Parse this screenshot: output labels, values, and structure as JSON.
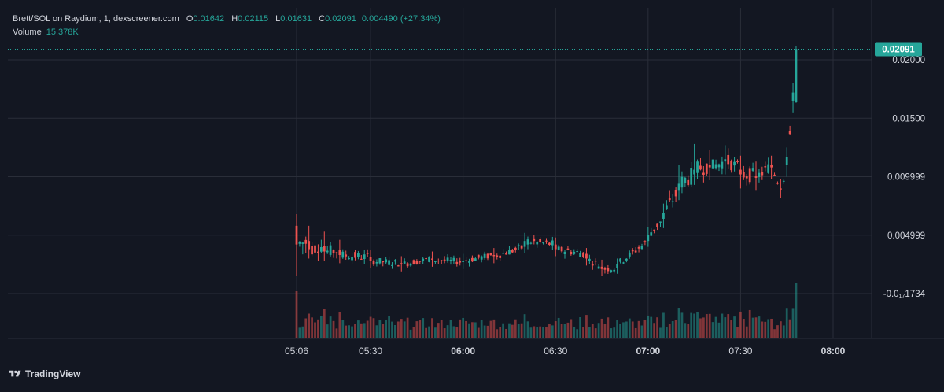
{
  "header": {
    "symbol": "Brett/SOL on Raydium, 1, dexscreener.com",
    "ohlc": [
      {
        "key": "O",
        "value": "0.01642"
      },
      {
        "key": "H",
        "value": "0.02115"
      },
      {
        "key": "L",
        "value": "0.01631"
      },
      {
        "key": "C",
        "value": "0.02091"
      }
    ],
    "change": "0.004490 (+27.34%)",
    "volume_label": "Volume",
    "volume_value": "15.378K"
  },
  "price_tag": "0.02091",
  "branding": "TradingView",
  "colors": {
    "background": "#131722",
    "up": "#26a69a",
    "down": "#ef5350",
    "grid": "#2a2e39",
    "text": "#d1d4dc",
    "tag": "#26a69a"
  },
  "chart_data": {
    "type": "candlestick",
    "y_tick_labels": [
      "0.02000",
      "0.01500",
      "0.009999",
      "0.004999",
      "-0.0₁₇1734"
    ],
    "y_ticks": [
      0.02,
      0.015,
      0.01,
      0.005,
      0.0
    ],
    "x_tick_labels": [
      "05:06",
      "05:30",
      "06:00",
      "06:30",
      "07:00",
      "07:30",
      "08:00"
    ],
    "x_tick_times": [
      "05:06",
      "05:30",
      "06:00",
      "06:30",
      "07:00",
      "07:30",
      "08:00"
    ],
    "x_tick_bold": [
      false,
      false,
      true,
      false,
      true,
      false,
      true
    ],
    "time_range": [
      "04:00",
      "08:30"
    ],
    "price_range": [
      -0.004,
      0.0245
    ],
    "last_price": 0.02091,
    "anchors": [
      {
        "t": "05:06",
        "o": 0.0058,
        "c": 0.0042,
        "h": 0.0068,
        "l": 0.0015
      },
      {
        "t": "05:10",
        "o": 0.0045,
        "c": 0.0038,
        "h": 0.0058,
        "l": 0.003
      },
      {
        "t": "05:15",
        "o": 0.0041,
        "c": 0.0036,
        "h": 0.0053,
        "l": 0.0028
      },
      {
        "t": "05:20",
        "o": 0.0037,
        "c": 0.0033,
        "h": 0.0046,
        "l": 0.0026
      },
      {
        "t": "05:30",
        "o": 0.0031,
        "c": 0.0028,
        "h": 0.0037,
        "l": 0.0022
      },
      {
        "t": "05:40",
        "o": 0.0026,
        "c": 0.0025,
        "h": 0.0032,
        "l": 0.0019
      },
      {
        "t": "05:50",
        "o": 0.003,
        "c": 0.0029,
        "h": 0.0036,
        "l": 0.0023
      },
      {
        "t": "06:00",
        "o": 0.0027,
        "c": 0.0028,
        "h": 0.0034,
        "l": 0.0021
      },
      {
        "t": "06:10",
        "o": 0.0033,
        "c": 0.0032,
        "h": 0.0039,
        "l": 0.0026
      },
      {
        "t": "06:20",
        "o": 0.004,
        "c": 0.0045,
        "h": 0.0052,
        "l": 0.0035
      },
      {
        "t": "06:30",
        "o": 0.0042,
        "c": 0.0038,
        "h": 0.0048,
        "l": 0.0032
      },
      {
        "t": "06:40",
        "o": 0.0034,
        "c": 0.003,
        "h": 0.0039,
        "l": 0.0024
      },
      {
        "t": "06:45",
        "o": 0.0023,
        "c": 0.0021,
        "h": 0.0029,
        "l": 0.0015
      },
      {
        "t": "06:50",
        "o": 0.0022,
        "c": 0.0025,
        "h": 0.003,
        "l": 0.0017
      },
      {
        "t": "07:00",
        "o": 0.0045,
        "c": 0.005,
        "h": 0.0057,
        "l": 0.004
      },
      {
        "t": "07:05",
        "o": 0.0064,
        "c": 0.0069,
        "h": 0.0077,
        "l": 0.0056
      },
      {
        "t": "07:10",
        "o": 0.0088,
        "c": 0.0094,
        "h": 0.011,
        "l": 0.008
      },
      {
        "t": "07:15",
        "o": 0.0102,
        "c": 0.0106,
        "h": 0.0128,
        "l": 0.0093
      },
      {
        "t": "07:20",
        "o": 0.011,
        "c": 0.0108,
        "h": 0.0123,
        "l": 0.0097
      },
      {
        "t": "07:25",
        "o": 0.0113,
        "c": 0.0115,
        "h": 0.0127,
        "l": 0.0102
      },
      {
        "t": "07:30",
        "o": 0.0106,
        "c": 0.0102,
        "h": 0.0118,
        "l": 0.009
      },
      {
        "t": "07:35",
        "o": 0.0101,
        "c": 0.0099,
        "h": 0.0113,
        "l": 0.0088
      },
      {
        "t": "07:40",
        "o": 0.011,
        "c": 0.0108,
        "h": 0.0118,
        "l": 0.0098
      },
      {
        "t": "07:43",
        "o": 0.009,
        "c": 0.0089,
        "h": 0.0098,
        "l": 0.0082
      },
      {
        "t": "07:45",
        "o": 0.011,
        "c": 0.0117,
        "h": 0.0125,
        "l": 0.01
      },
      {
        "t": "07:47",
        "o": 0.0165,
        "c": 0.0172,
        "h": 0.018,
        "l": 0.0155
      },
      {
        "t": "07:48",
        "o": 0.01642,
        "c": 0.02091,
        "h": 0.02115,
        "l": 0.01631
      }
    ],
    "volume_max_label": "15.378K"
  }
}
